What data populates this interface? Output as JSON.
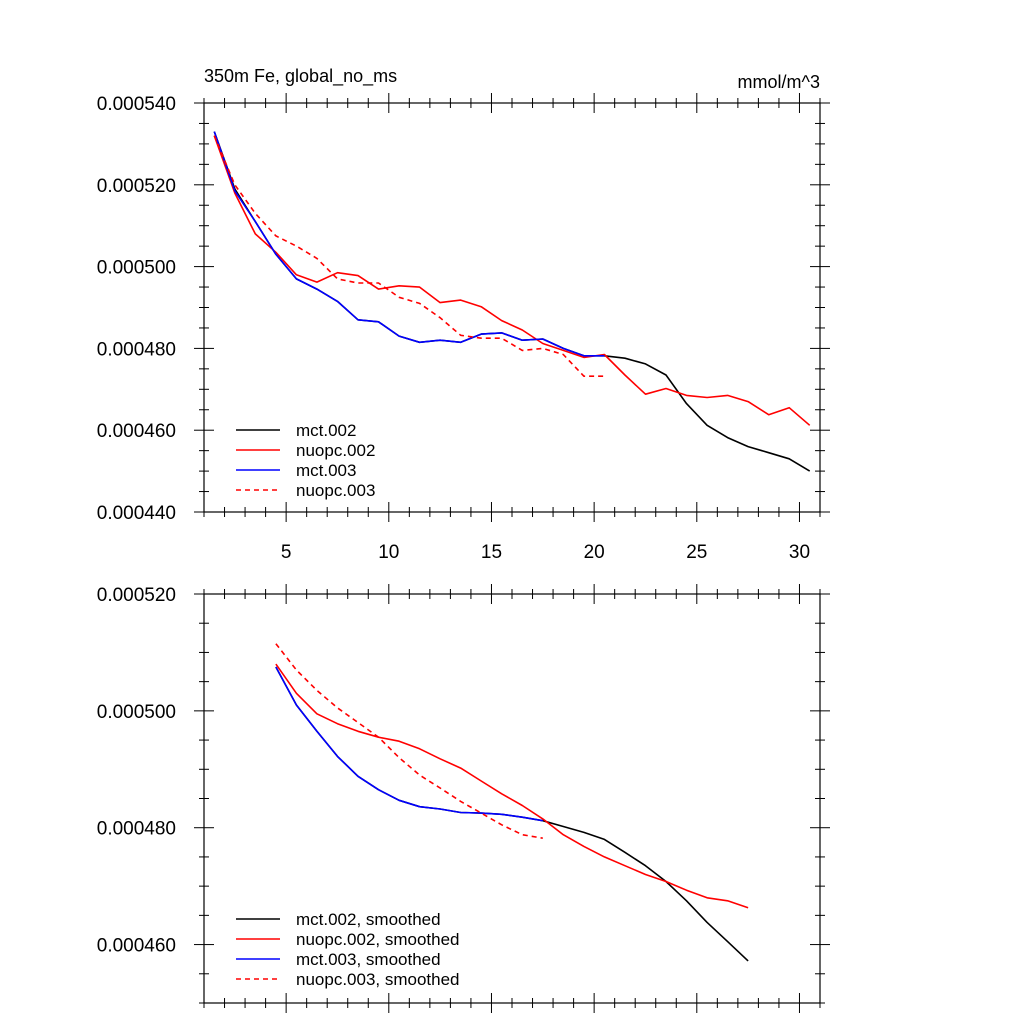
{
  "colors": {
    "mct002": "#000000",
    "nuopc002": "#ff0000",
    "mct003": "#0000ff",
    "nuopc003": "#ff0000"
  },
  "chart_data": [
    {
      "id": "top",
      "type": "line",
      "title": "350m Fe, global_no_ms",
      "units": "mmol/m^3",
      "xlabel": "",
      "ylabel": "",
      "xlim": [
        1,
        31
      ],
      "ylim": [
        0.00044,
        0.00054
      ],
      "x_ticks": [
        5,
        10,
        15,
        20,
        25,
        30
      ],
      "x_tick_labels": [
        "5",
        "10",
        "15",
        "20",
        "25",
        "30"
      ],
      "y_ticks": [
        0.00044,
        0.00046,
        0.00048,
        0.0005,
        0.00052,
        0.00054
      ],
      "y_tick_labels": [
        "0.000440",
        "0.000460",
        "0.000480",
        "0.000500",
        "0.000520",
        "0.000540"
      ],
      "legend_position": "bottom-left",
      "series": [
        {
          "key": "mct002",
          "name": "mct.002",
          "dash": false,
          "x": [
            1.5,
            2.5,
            3.5,
            4.5,
            5.5,
            6.5,
            7.5,
            8.5,
            9.5,
            10.5,
            11.5,
            12.5,
            13.5,
            14.5,
            15.5,
            16.5,
            17.5,
            18.5,
            19.5,
            20.5,
            21.5,
            22.5,
            23.5,
            24.5,
            25.5,
            26.5,
            27.5,
            28.5,
            29.5,
            30.5
          ],
          "values": [
            0.000533,
            0.000519,
            0.000511,
            0.000503,
            0.000497,
            0.0004945,
            0.0004915,
            0.000487,
            0.0004865,
            0.000483,
            0.0004815,
            0.000482,
            0.0004815,
            0.0004835,
            0.0004838,
            0.000482,
            0.0004823,
            0.00048,
            0.0004782,
            0.0004782,
            0.0004776,
            0.0004762,
            0.0004735,
            0.0004665,
            0.0004612,
            0.0004582,
            0.000456,
            0.0004545,
            0.000453,
            0.00045
          ]
        },
        {
          "key": "nuopc002",
          "name": "nuopc.002",
          "dash": false,
          "x": [
            1.5,
            2.5,
            3.5,
            4.5,
            5.5,
            6.5,
            7.5,
            8.5,
            9.5,
            10.5,
            11.5,
            12.5,
            13.5,
            14.5,
            15.5,
            16.5,
            17.5,
            18.5,
            19.5,
            20.5,
            21.5,
            22.5,
            23.5,
            24.5,
            25.5,
            26.5,
            27.5,
            28.5,
            29.5,
            30.5
          ],
          "values": [
            0.000532,
            0.000518,
            0.000508,
            0.0005035,
            0.000498,
            0.0004962,
            0.0004985,
            0.0004978,
            0.0004945,
            0.0004953,
            0.000495,
            0.0004912,
            0.0004918,
            0.0004902,
            0.0004868,
            0.0004845,
            0.0004812,
            0.0004795,
            0.0004778,
            0.0004785,
            0.0004735,
            0.0004688,
            0.0004702,
            0.0004685,
            0.000468,
            0.0004685,
            0.000467,
            0.0004638,
            0.0004655,
            0.0004612
          ]
        },
        {
          "key": "mct003",
          "name": "mct.003",
          "dash": false,
          "x": [
            1.5,
            2.5,
            3.5,
            4.5,
            5.5,
            6.5,
            7.5,
            8.5,
            9.5,
            10.5,
            11.5,
            12.5,
            13.5,
            14.5,
            15.5,
            16.5,
            17.5,
            18.5,
            19.5,
            20.5
          ],
          "values": [
            0.000533,
            0.0005185,
            0.000511,
            0.000503,
            0.000497,
            0.0004945,
            0.0004915,
            0.000487,
            0.0004865,
            0.000483,
            0.0004815,
            0.000482,
            0.0004815,
            0.0004835,
            0.0004838,
            0.000482,
            0.0004823,
            0.00048,
            0.0004782,
            0.0004782
          ]
        },
        {
          "key": "nuopc003",
          "name": "nuopc.003",
          "dash": true,
          "x": [
            1.5,
            2.5,
            3.5,
            4.5,
            5.5,
            6.5,
            7.5,
            8.5,
            9.5,
            10.5,
            11.5,
            12.5,
            13.5,
            14.5,
            15.5,
            16.5,
            17.5,
            18.5,
            19.5,
            20.5
          ],
          "values": [
            0.000532,
            0.00052,
            0.000513,
            0.0005075,
            0.000505,
            0.000502,
            0.000497,
            0.000496,
            0.000496,
            0.0004925,
            0.000491,
            0.0004875,
            0.0004832,
            0.0004825,
            0.0004825,
            0.0004795,
            0.00048,
            0.0004785,
            0.0004732,
            0.0004732
          ]
        }
      ]
    },
    {
      "id": "bottom",
      "type": "line",
      "title": "",
      "units": "",
      "xlabel": "",
      "ylabel": "",
      "xlim": [
        1,
        31
      ],
      "ylim": [
        0.00045,
        0.00052
      ],
      "x_ticks": [
        5,
        10,
        15,
        20,
        25,
        30
      ],
      "x_tick_labels": [],
      "y_ticks": [
        0.00046,
        0.00048,
        0.0005,
        0.00052
      ],
      "y_tick_labels": [
        "0.000460",
        "0.000480",
        "0.000500",
        "0.000520"
      ],
      "legend_position": "bottom-left",
      "series": [
        {
          "key": "mct002",
          "name": "mct.002, smoothed",
          "dash": false,
          "x": [
            4.5,
            5.5,
            6.5,
            7.5,
            8.5,
            9.5,
            10.5,
            11.5,
            12.5,
            13.5,
            14.5,
            15.5,
            16.5,
            17.5,
            18.5,
            19.5,
            20.5,
            21.5,
            22.5,
            23.5,
            24.5,
            25.5,
            26.5,
            27.5
          ],
          "values": [
            0.0005075,
            0.000501,
            0.0004965,
            0.0004922,
            0.0004888,
            0.0004865,
            0.0004847,
            0.0004836,
            0.0004832,
            0.0004826,
            0.0004825,
            0.0004823,
            0.0004818,
            0.0004812,
            0.0004802,
            0.0004792,
            0.000478,
            0.0004758,
            0.0004735,
            0.0004708,
            0.0004675,
            0.0004638,
            0.0004605,
            0.0004572
          ]
        },
        {
          "key": "nuopc002",
          "name": "nuopc.002, smoothed",
          "dash": false,
          "x": [
            4.5,
            5.5,
            6.5,
            7.5,
            8.5,
            9.5,
            10.5,
            11.5,
            12.5,
            13.5,
            14.5,
            15.5,
            16.5,
            17.5,
            18.5,
            19.5,
            20.5,
            21.5,
            22.5,
            23.5,
            24.5,
            25.5,
            26.5,
            27.5
          ],
          "values": [
            0.000508,
            0.000503,
            0.0004995,
            0.0004978,
            0.0004965,
            0.0004955,
            0.0004948,
            0.0004935,
            0.0004918,
            0.0004902,
            0.000488,
            0.0004858,
            0.0004838,
            0.0004815,
            0.0004788,
            0.0004768,
            0.000475,
            0.0004735,
            0.000472,
            0.0004708,
            0.0004693,
            0.000468,
            0.0004675,
            0.0004663
          ]
        },
        {
          "key": "mct003",
          "name": "mct.003, smoothed",
          "dash": false,
          "x": [
            4.5,
            5.5,
            6.5,
            7.5,
            8.5,
            9.5,
            10.5,
            11.5,
            12.5,
            13.5,
            14.5,
            15.5,
            16.5,
            17.5
          ],
          "values": [
            0.0005075,
            0.000501,
            0.0004965,
            0.0004922,
            0.0004888,
            0.0004865,
            0.0004847,
            0.0004836,
            0.0004832,
            0.0004826,
            0.0004825,
            0.0004823,
            0.0004818,
            0.0004812
          ]
        },
        {
          "key": "nuopc003",
          "name": "nuopc.003, smoothed",
          "dash": true,
          "x": [
            4.5,
            5.5,
            6.5,
            7.5,
            8.5,
            9.5,
            10.5,
            11.5,
            12.5,
            13.5,
            14.5,
            15.5,
            16.5,
            17.5
          ],
          "values": [
            0.0005115,
            0.000507,
            0.0005035,
            0.0005005,
            0.000498,
            0.0004955,
            0.000492,
            0.000489,
            0.0004868,
            0.0004845,
            0.0004825,
            0.0004805,
            0.0004788,
            0.0004782
          ]
        }
      ]
    }
  ]
}
